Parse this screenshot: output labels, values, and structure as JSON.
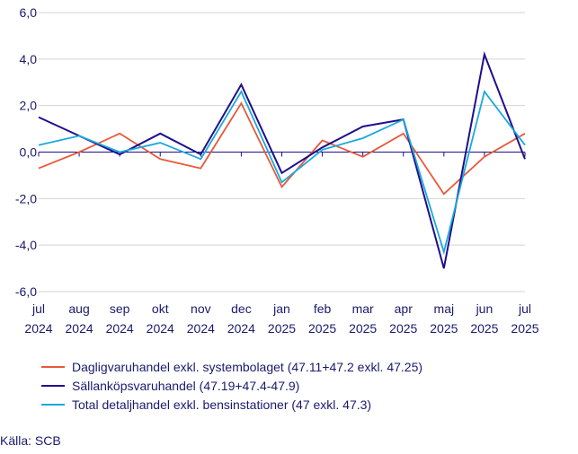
{
  "chart_data": {
    "type": "line",
    "categories": [
      "jul 2024",
      "aug 2024",
      "sep 2024",
      "okt 2024",
      "nov 2024",
      "dec 2024",
      "jan 2025",
      "feb 2025",
      "mar 2025",
      "apr 2025",
      "maj 2025",
      "jun 2025",
      "jul 2025"
    ],
    "x_tick_lines": [
      [
        "jul",
        "2024"
      ],
      [
        "aug",
        "2024"
      ],
      [
        "sep",
        "2024"
      ],
      [
        "okt",
        "2024"
      ],
      [
        "nov",
        "2024"
      ],
      [
        "dec",
        "2024"
      ],
      [
        "jan",
        "2025"
      ],
      [
        "feb",
        "2025"
      ],
      [
        "mar",
        "2025"
      ],
      [
        "apr",
        "2025"
      ],
      [
        "maj",
        "2025"
      ],
      [
        "jun",
        "2025"
      ],
      [
        "jul",
        "2025"
      ]
    ],
    "ylim": [
      -6,
      6
    ],
    "yticks": [
      -6,
      -4,
      -2,
      0,
      2,
      4,
      6
    ],
    "ytick_labels": [
      "-6,0",
      "-4,0",
      "-2,0",
      "0,0",
      "2,0",
      "4,0",
      "6,0"
    ],
    "grid": "horizontal",
    "series": [
      {
        "name": "Dagligvaruhandel exkl. systembolaget (47.11+47.2 exkl. 47.25)",
        "color": "#e8593a",
        "values": [
          -0.7,
          0.0,
          0.8,
          -0.3,
          -0.7,
          2.1,
          -1.5,
          0.5,
          -0.2,
          0.8,
          -1.8,
          -0.2,
          0.8
        ]
      },
      {
        "name": "Sällanköpsvaruhandel (47.19+47.4-47.9)",
        "color": "#1e0f8c",
        "values": [
          1.5,
          0.7,
          -0.1,
          0.8,
          -0.1,
          2.9,
          -0.9,
          0.2,
          1.1,
          1.4,
          -5.0,
          4.2,
          -0.3
        ]
      },
      {
        "name": "Total detaljhandel exkl. bensinstationer (47 exkl. 47.3)",
        "color": "#1aa9dc",
        "values": [
          0.3,
          0.7,
          0.0,
          0.4,
          -0.3,
          2.6,
          -1.3,
          0.1,
          0.6,
          1.4,
          -4.3,
          2.6,
          0.3
        ]
      }
    ],
    "legend_position": "bottom-left"
  },
  "source": "Källa: SCB"
}
